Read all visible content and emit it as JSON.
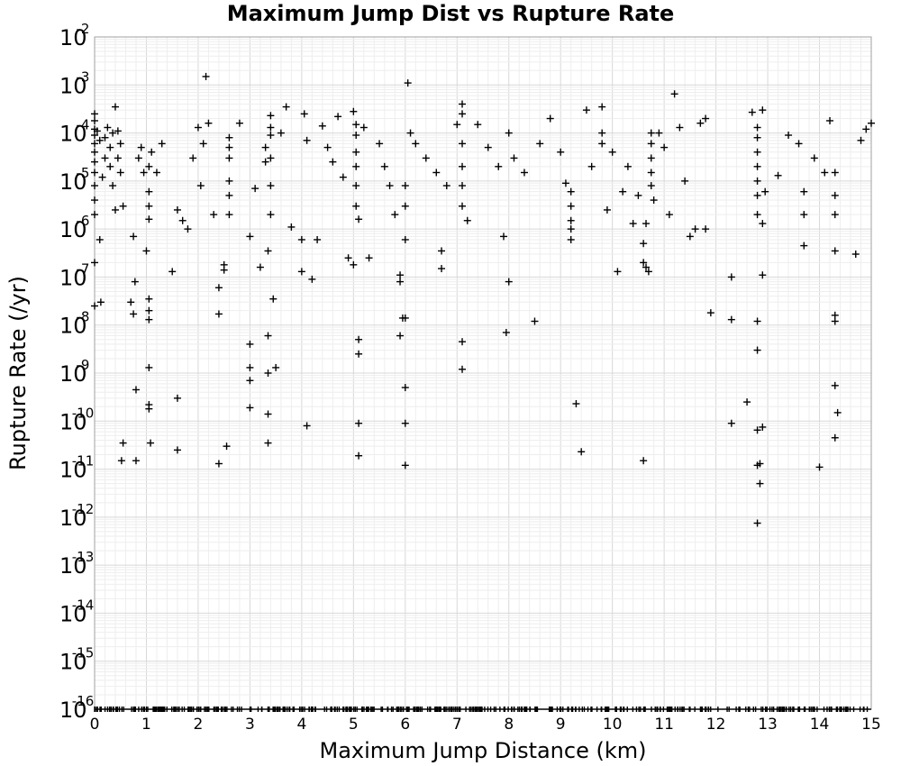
{
  "chart_data": {
    "type": "scatter",
    "title": "Maximum Jump Dist vs Rupture Rate",
    "xlabel": "Maximum Jump Distance (km)",
    "ylabel": "Rupture Rate (/yr)",
    "xlim": [
      0,
      15
    ],
    "ylim_exponent": [
      -16,
      -2
    ],
    "yscale": "log",
    "grid": true,
    "marker": "plus",
    "x_ticks": [
      "0",
      "1",
      "2",
      "3",
      "4",
      "5",
      "6",
      "7",
      "8",
      "9",
      "10",
      "11",
      "12",
      "13",
      "14",
      "15"
    ],
    "y_ticks": [
      {
        "base": "10",
        "exp": "-2"
      },
      {
        "base": "10",
        "exp": "-3"
      },
      {
        "base": "10",
        "exp": "-4"
      },
      {
        "base": "10",
        "exp": "-5"
      },
      {
        "base": "10",
        "exp": "-6"
      },
      {
        "base": "10",
        "exp": "-7"
      },
      {
        "base": "10",
        "exp": "-8"
      },
      {
        "base": "10",
        "exp": "-9"
      },
      {
        "base": "10",
        "exp": "-10"
      },
      {
        "base": "10",
        "exp": "-11"
      },
      {
        "base": "10",
        "exp": "-12"
      },
      {
        "base": "10",
        "exp": "-13"
      },
      {
        "base": "10",
        "exp": "-14"
      },
      {
        "base": "10",
        "exp": "-15"
      },
      {
        "base": "10",
        "exp": "-16"
      }
    ],
    "points": [
      [
        0.0,
        0.00025
      ],
      [
        0.0,
        0.00018
      ],
      [
        0.0,
        0.00012
      ],
      [
        0.0,
        9e-05
      ],
      [
        0.0,
        6e-05
      ],
      [
        0.0,
        4e-05
      ],
      [
        0.0,
        2.5e-05
      ],
      [
        0.0,
        1.5e-05
      ],
      [
        0.0,
        8e-06
      ],
      [
        0.0,
        4e-06
      ],
      [
        0.0,
        2e-06
      ],
      [
        0.0,
        2e-07
      ],
      [
        0.0,
        2.5e-08
      ],
      [
        0.05,
        0.00011
      ],
      [
        0.1,
        7e-05
      ],
      [
        0.1,
        6e-07
      ],
      [
        0.12,
        3e-08
      ],
      [
        0.15,
        1.2e-05
      ],
      [
        0.2,
        8e-05
      ],
      [
        0.2,
        3e-05
      ],
      [
        0.25,
        0.00013
      ],
      [
        0.3,
        5e-05
      ],
      [
        0.3,
        2e-05
      ],
      [
        0.35,
        0.0001
      ],
      [
        0.35,
        8e-06
      ],
      [
        0.4,
        0.00035
      ],
      [
        0.4,
        2.5e-06
      ],
      [
        0.45,
        0.00011
      ],
      [
        0.45,
        3e-05
      ],
      [
        0.5,
        6e-05
      ],
      [
        0.5,
        1.5e-05
      ],
      [
        0.55,
        3e-06
      ],
      [
        0.52,
        1.5e-11
      ],
      [
        0.55,
        3.5e-11
      ],
      [
        0.7,
        3e-08
      ],
      [
        0.75,
        1.7e-08
      ],
      [
        0.75,
        7e-07
      ],
      [
        0.78,
        8e-08
      ],
      [
        0.8,
        4.5e-10
      ],
      [
        0.8,
        1.5e-11
      ],
      [
        0.85,
        3e-05
      ],
      [
        0.9,
        5e-05
      ],
      [
        0.95,
        1.5e-05
      ],
      [
        1.0,
        3.5e-07
      ],
      [
        1.05,
        1.3e-09
      ],
      [
        1.05,
        2.2e-10
      ],
      [
        1.05,
        1.8e-10
      ],
      [
        1.08,
        3.5e-11
      ],
      [
        1.05,
        1.3e-08
      ],
      [
        1.05,
        2e-08
      ],
      [
        1.05,
        3.5e-08
      ],
      [
        1.05,
        1.6e-06
      ],
      [
        1.05,
        3e-06
      ],
      [
        1.05,
        6e-06
      ],
      [
        1.05,
        2e-05
      ],
      [
        1.1,
        4e-05
      ],
      [
        1.2,
        1.5e-05
      ],
      [
        1.3,
        6e-05
      ],
      [
        1.5,
        1.3e-07
      ],
      [
        1.6,
        3e-10
      ],
      [
        1.6,
        2.5e-11
      ],
      [
        1.6,
        2.5e-06
      ],
      [
        1.7,
        1.5e-06
      ],
      [
        1.8,
        1e-06
      ],
      [
        1.9,
        3e-05
      ],
      [
        2.0,
        0.00013
      ],
      [
        2.05,
        8e-06
      ],
      [
        2.1,
        6e-05
      ],
      [
        2.15,
        0.0015
      ],
      [
        2.2,
        0.00016
      ],
      [
        2.3,
        2e-06
      ],
      [
        2.4,
        6e-08
      ],
      [
        2.4,
        1.7e-08
      ],
      [
        2.4,
        1.3e-11
      ],
      [
        2.5,
        1.8e-07
      ],
      [
        2.5,
        1.4e-07
      ],
      [
        2.55,
        3e-11
      ],
      [
        2.6,
        8e-05
      ],
      [
        2.6,
        5e-05
      ],
      [
        2.6,
        3e-05
      ],
      [
        2.6,
        1e-05
      ],
      [
        2.6,
        5e-06
      ],
      [
        2.6,
        2e-06
      ],
      [
        2.8,
        0.00016
      ],
      [
        3.0,
        4e-09
      ],
      [
        3.0,
        1.3e-09
      ],
      [
        3.0,
        7e-10
      ],
      [
        3.0,
        1.9e-10
      ],
      [
        3.0,
        7e-07
      ],
      [
        3.1,
        7e-06
      ],
      [
        3.2,
        1.6e-07
      ],
      [
        3.3,
        5e-05
      ],
      [
        3.3,
        2.5e-05
      ],
      [
        3.35,
        3.5e-07
      ],
      [
        3.35,
        6e-09
      ],
      [
        3.35,
        1e-09
      ],
      [
        3.35,
        1.4e-10
      ],
      [
        3.35,
        3.5e-11
      ],
      [
        3.4,
        0.00023
      ],
      [
        3.4,
        0.00013
      ],
      [
        3.4,
        9e-05
      ],
      [
        3.4,
        3e-05
      ],
      [
        3.4,
        8e-06
      ],
      [
        3.4,
        2e-06
      ],
      [
        3.45,
        3.5e-08
      ],
      [
        3.5,
        1.3e-09
      ],
      [
        3.6,
        0.0001
      ],
      [
        3.7,
        0.00035
      ],
      [
        3.8,
        1.1e-06
      ],
      [
        4.0,
        6e-07
      ],
      [
        4.0,
        1.3e-07
      ],
      [
        4.05,
        0.00025
      ],
      [
        4.1,
        7e-05
      ],
      [
        4.1,
        8e-11
      ],
      [
        4.2,
        9e-08
      ],
      [
        4.3,
        6e-07
      ],
      [
        4.4,
        0.00014
      ],
      [
        4.5,
        5e-05
      ],
      [
        4.6,
        2.5e-05
      ],
      [
        4.7,
        0.00022
      ],
      [
        4.8,
        1.2e-05
      ],
      [
        4.9,
        2.5e-07
      ],
      [
        5.0,
        1.8e-07
      ],
      [
        5.0,
        0.00028
      ],
      [
        5.05,
        0.00015
      ],
      [
        5.05,
        9e-05
      ],
      [
        5.05,
        4e-05
      ],
      [
        5.05,
        2e-05
      ],
      [
        5.05,
        8e-06
      ],
      [
        5.05,
        3e-06
      ],
      [
        5.1,
        1.6e-06
      ],
      [
        5.1,
        5e-09
      ],
      [
        5.1,
        2.5e-09
      ],
      [
        5.1,
        9e-11
      ],
      [
        5.1,
        1.9e-11
      ],
      [
        5.2,
        0.00013
      ],
      [
        5.3,
        2.5e-07
      ],
      [
        5.5,
        6e-05
      ],
      [
        5.6,
        2e-05
      ],
      [
        5.7,
        8e-06
      ],
      [
        5.8,
        2e-06
      ],
      [
        5.9,
        1.1e-07
      ],
      [
        5.9,
        8e-08
      ],
      [
        5.9,
        6e-09
      ],
      [
        5.95,
        1.4e-08
      ],
      [
        6.0,
        1.4e-08
      ],
      [
        6.0,
        5e-10
      ],
      [
        6.0,
        9e-11
      ],
      [
        6.0,
        1.2e-11
      ],
      [
        6.0,
        6e-07
      ],
      [
        6.0,
        3e-06
      ],
      [
        6.0,
        8e-06
      ],
      [
        6.05,
        0.0011
      ],
      [
        6.1,
        0.0001
      ],
      [
        6.2,
        6e-05
      ],
      [
        6.4,
        3e-05
      ],
      [
        6.6,
        1.5e-05
      ],
      [
        6.7,
        1.5e-07
      ],
      [
        6.7,
        3.5e-07
      ],
      [
        6.8,
        8e-06
      ],
      [
        7.0,
        0.00015
      ],
      [
        7.1,
        0.0004
      ],
      [
        7.1,
        0.00025
      ],
      [
        7.1,
        6e-05
      ],
      [
        7.1,
        2e-05
      ],
      [
        7.1,
        8e-06
      ],
      [
        7.1,
        3e-06
      ],
      [
        7.1,
        4.5e-09
      ],
      [
        7.1,
        1.2e-09
      ],
      [
        7.2,
        1.5e-06
      ],
      [
        7.4,
        0.00015
      ],
      [
        7.6,
        5e-05
      ],
      [
        7.8,
        2e-05
      ],
      [
        7.9,
        7e-07
      ],
      [
        7.95,
        7e-09
      ],
      [
        8.0,
        8e-08
      ],
      [
        8.0,
        0.0001
      ],
      [
        8.1,
        3e-05
      ],
      [
        8.3,
        1.5e-05
      ],
      [
        8.5,
        1.2e-08
      ],
      [
        8.6,
        6e-05
      ],
      [
        8.8,
        0.0002
      ],
      [
        9.0,
        4e-05
      ],
      [
        9.1,
        9e-06
      ],
      [
        9.2,
        6e-06
      ],
      [
        9.2,
        3e-06
      ],
      [
        9.2,
        1.5e-06
      ],
      [
        9.2,
        1e-06
      ],
      [
        9.2,
        6e-07
      ],
      [
        9.3,
        2.3e-10
      ],
      [
        9.4,
        2.3e-11
      ],
      [
        9.5,
        0.0003
      ],
      [
        9.6,
        2e-05
      ],
      [
        9.8,
        0.00035
      ],
      [
        9.8,
        0.0001
      ],
      [
        9.8,
        6e-05
      ],
      [
        9.9,
        2.5e-06
      ],
      [
        10.0,
        4e-05
      ],
      [
        10.1,
        1.3e-07
      ],
      [
        10.2,
        6e-06
      ],
      [
        10.3,
        2e-05
      ],
      [
        10.4,
        1.3e-06
      ],
      [
        10.5,
        5e-06
      ],
      [
        10.6,
        1.5e-11
      ],
      [
        10.6,
        2e-07
      ],
      [
        10.65,
        1.6e-07
      ],
      [
        10.6,
        5e-07
      ],
      [
        10.65,
        1.3e-06
      ],
      [
        10.7,
        1.3e-07
      ],
      [
        10.75,
        0.0001
      ],
      [
        10.75,
        6e-05
      ],
      [
        10.75,
        3e-05
      ],
      [
        10.75,
        1.5e-05
      ],
      [
        10.75,
        8e-06
      ],
      [
        10.8,
        4e-06
      ],
      [
        10.9,
        0.0001
      ],
      [
        11.0,
        5e-05
      ],
      [
        11.1,
        2e-06
      ],
      [
        11.2,
        0.00065
      ],
      [
        11.3,
        0.00013
      ],
      [
        11.4,
        1e-05
      ],
      [
        11.5,
        7e-07
      ],
      [
        11.6,
        1e-06
      ],
      [
        11.7,
        0.00016
      ],
      [
        11.8,
        1e-06
      ],
      [
        11.8,
        0.0002
      ],
      [
        11.9,
        1.8e-08
      ],
      [
        12.3,
        1e-07
      ],
      [
        12.3,
        1.3e-08
      ],
      [
        12.3,
        9e-11
      ],
      [
        12.6,
        2.5e-10
      ],
      [
        12.7,
        0.00027
      ],
      [
        12.8,
        0.00013
      ],
      [
        12.8,
        8e-05
      ],
      [
        12.8,
        4e-05
      ],
      [
        12.8,
        2e-05
      ],
      [
        12.8,
        1e-05
      ],
      [
        12.8,
        5e-06
      ],
      [
        12.8,
        2e-06
      ],
      [
        12.8,
        1.2e-08
      ],
      [
        12.8,
        3e-09
      ],
      [
        12.8,
        6.5e-11
      ],
      [
        12.8,
        1.2e-11
      ],
      [
        12.8,
        7.5e-13
      ],
      [
        12.85,
        1.3e-11
      ],
      [
        12.85,
        5e-12
      ],
      [
        12.9,
        7.5e-11
      ],
      [
        12.9,
        0.0003
      ],
      [
        12.9,
        1.1e-07
      ],
      [
        12.9,
        1.3e-06
      ],
      [
        12.95,
        6e-06
      ],
      [
        13.2,
        1.3e-05
      ],
      [
        13.4,
        9e-05
      ],
      [
        13.6,
        6e-05
      ],
      [
        13.7,
        4.5e-07
      ],
      [
        13.7,
        2e-06
      ],
      [
        13.7,
        6e-06
      ],
      [
        13.9,
        3e-05
      ],
      [
        14.0,
        1.1e-11
      ],
      [
        14.1,
        1.5e-05
      ],
      [
        14.2,
        0.00018
      ],
      [
        14.3,
        3.5e-07
      ],
      [
        14.3,
        1.6e-08
      ],
      [
        14.3,
        1.2e-08
      ],
      [
        14.3,
        5.5e-10
      ],
      [
        14.35,
        1.5e-10
      ],
      [
        14.3,
        4.5e-11
      ],
      [
        14.3,
        2e-06
      ],
      [
        14.3,
        5e-06
      ],
      [
        14.3,
        1.5e-05
      ],
      [
        14.7,
        3e-07
      ],
      [
        14.8,
        7e-05
      ],
      [
        14.9,
        0.00012
      ],
      [
        15.0,
        0.00016
      ]
    ],
    "rug_note": "dense row of markers along the 10^-16 floor",
    "rug_floor_exponent": -16
  }
}
